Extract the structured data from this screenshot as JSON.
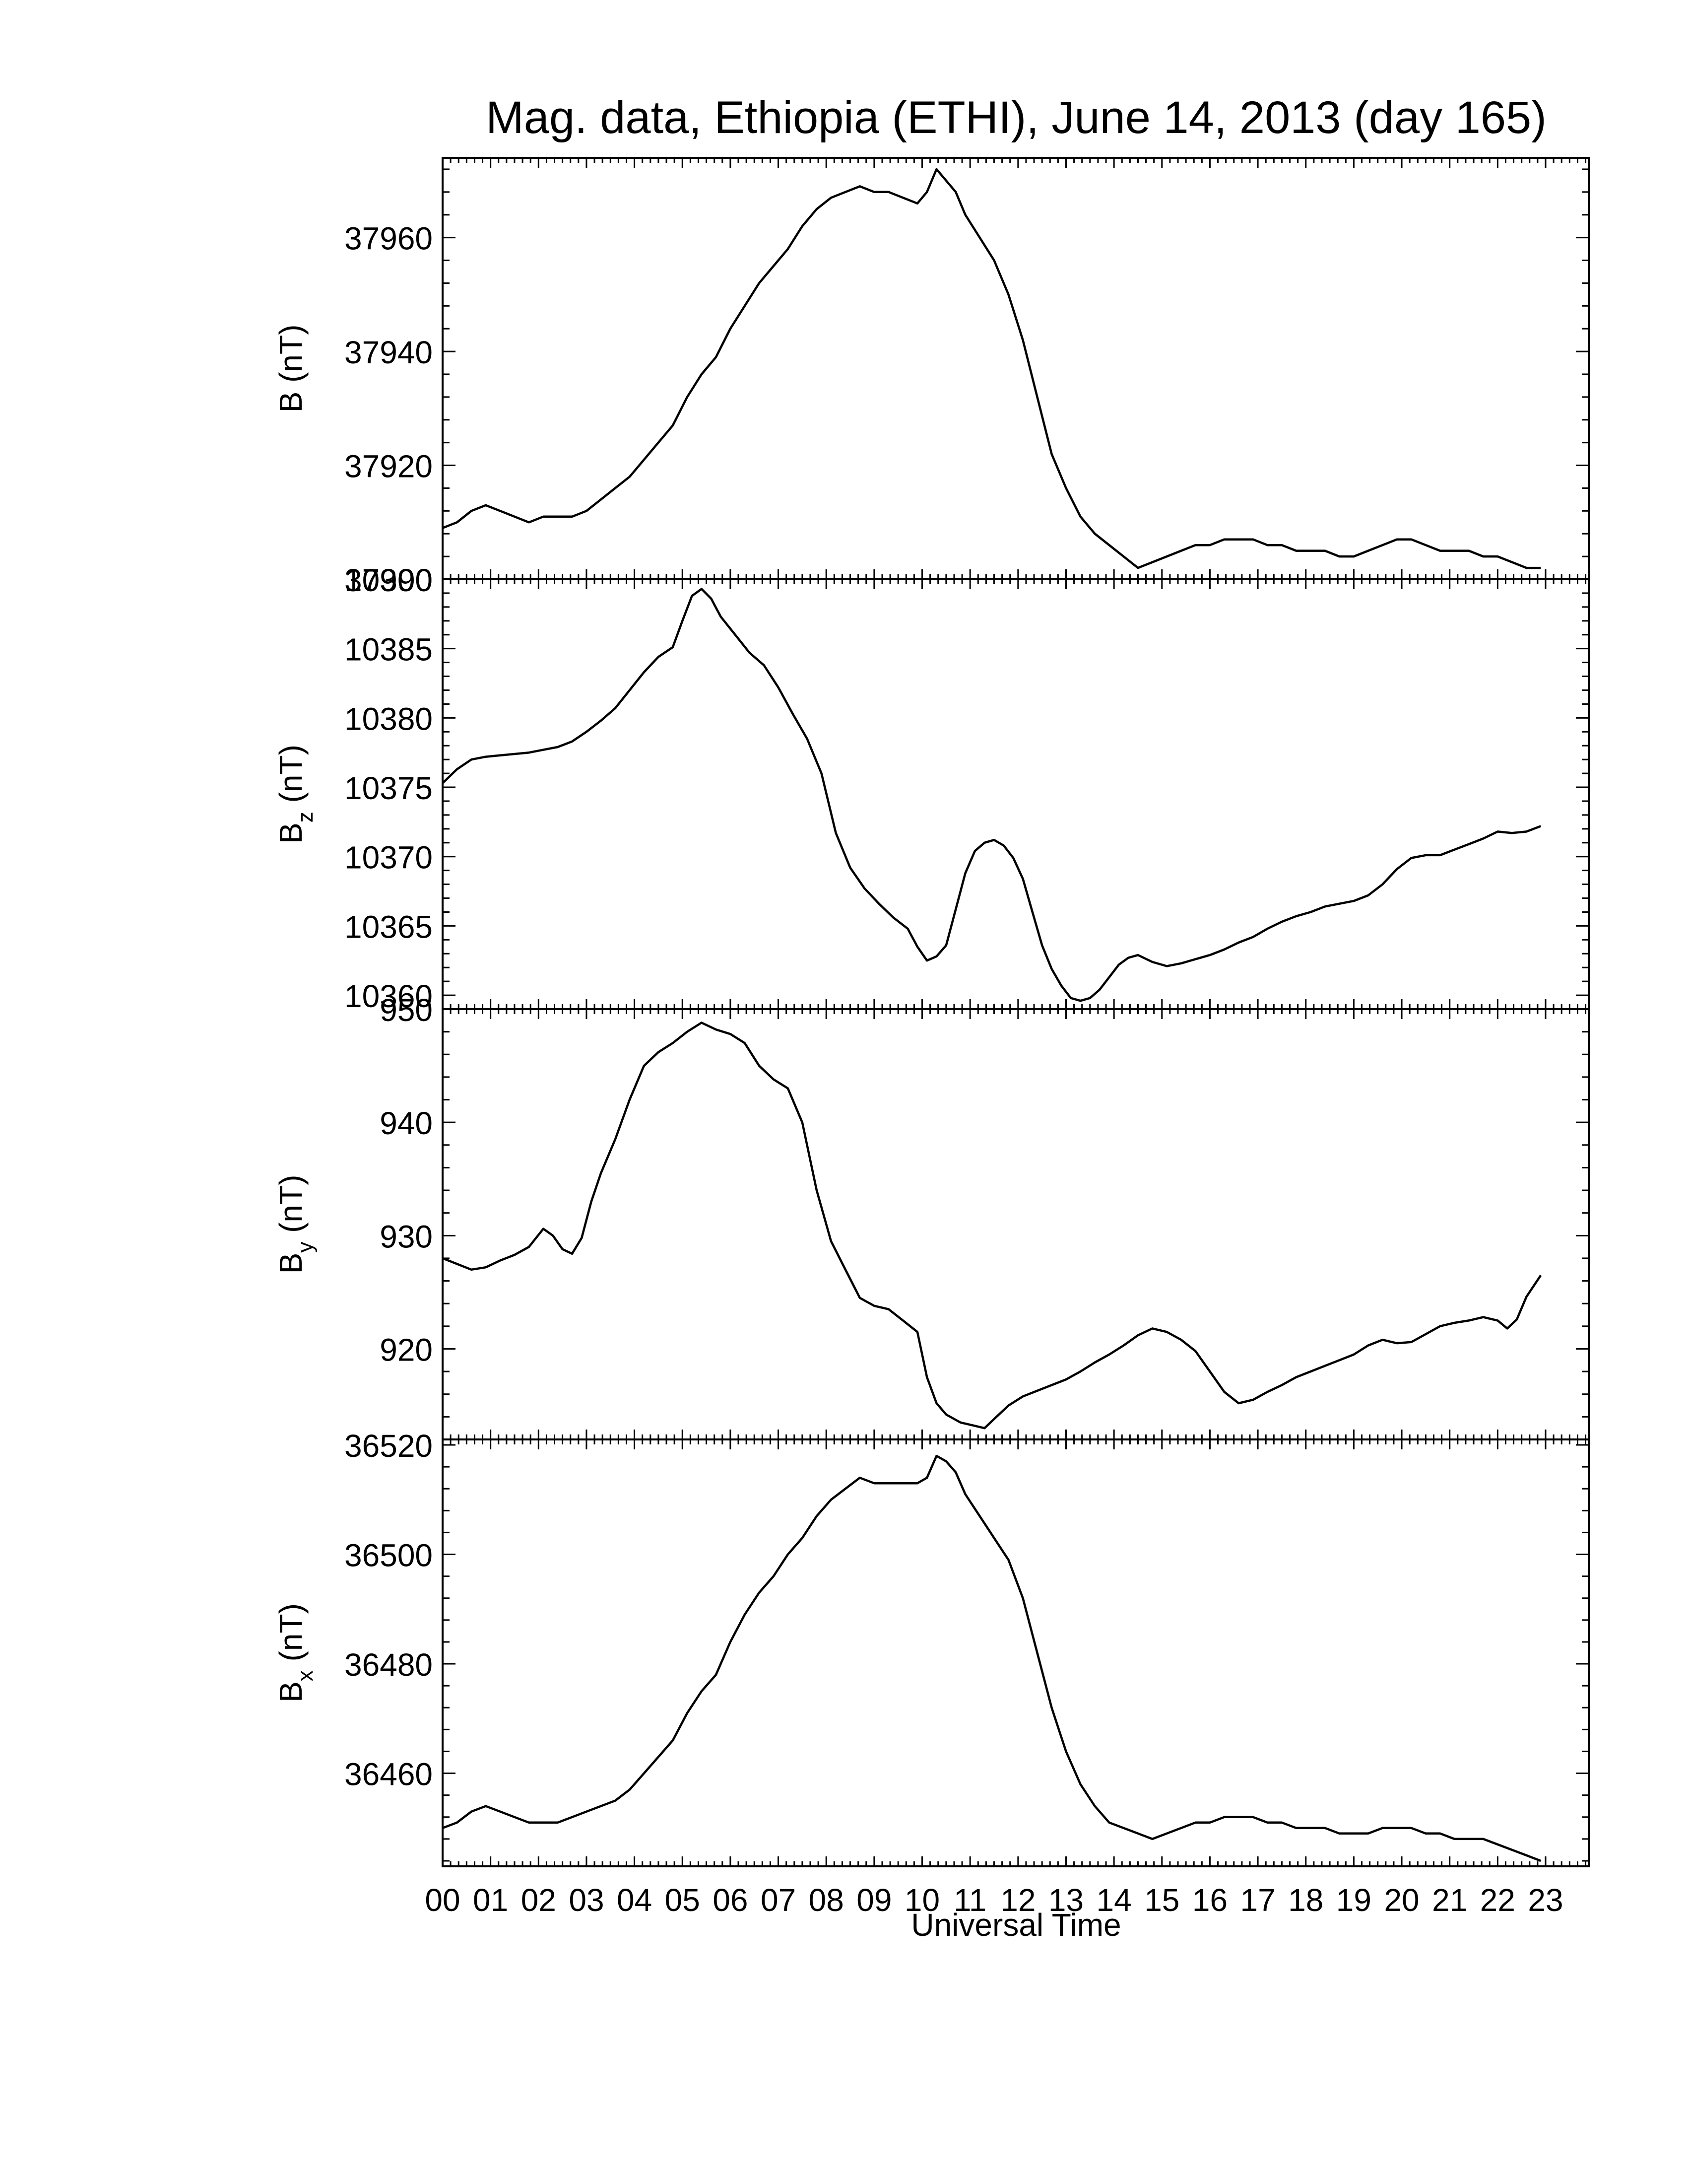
{
  "title": "Mag. data, Ethiopia (ETHI), June 14, 2013 (day 165)",
  "xlabel": "Universal Time",
  "x_tick_labels": [
    "00",
    "01",
    "02",
    "03",
    "04",
    "05",
    "06",
    "07",
    "08",
    "09",
    "10",
    "11",
    "12",
    "13",
    "14",
    "15",
    "16",
    "17",
    "18",
    "19",
    "20",
    "21",
    "22",
    "23"
  ],
  "chart_data": [
    {
      "type": "line",
      "ylabel": "B (nT)",
      "ylabel_main": "B",
      "ylabel_sub": "",
      "ylabel_unit": " (nT)",
      "ylim": [
        37900,
        37974
      ],
      "yticks": [
        37900,
        37920,
        37940,
        37960
      ],
      "series": [
        {
          "x": [
            0.0,
            0.3,
            0.6,
            0.9,
            1.2,
            1.5,
            1.8,
            2.1,
            2.4,
            2.7,
            3.0,
            3.3,
            3.6,
            3.9,
            4.2,
            4.5,
            4.8,
            5.1,
            5.4,
            5.7,
            6.0,
            6.3,
            6.6,
            6.9,
            7.2,
            7.5,
            7.8,
            8.1,
            8.4,
            8.7,
            9.0,
            9.3,
            9.6,
            9.9,
            10.1,
            10.3,
            10.5,
            10.7,
            10.9,
            11.2,
            11.5,
            11.8,
            12.1,
            12.4,
            12.7,
            13.0,
            13.3,
            13.6,
            13.9,
            14.2,
            14.5,
            14.8,
            15.1,
            15.4,
            15.7,
            16.0,
            16.3,
            16.6,
            16.9,
            17.2,
            17.5,
            17.8,
            18.1,
            18.4,
            18.7,
            19.0,
            19.3,
            19.6,
            19.9,
            20.2,
            20.5,
            20.8,
            21.1,
            21.4,
            21.7,
            22.0,
            22.3,
            22.6,
            22.9
          ],
          "y": [
            37909,
            37910,
            37912,
            37913,
            37912,
            37911,
            37910,
            37911,
            37911,
            37911,
            37912,
            37914,
            37916,
            37918,
            37921,
            37924,
            37927,
            37932,
            37936,
            37939,
            37944,
            37948,
            37952,
            37955,
            37958,
            37962,
            37965,
            37967,
            37968,
            37969,
            37968,
            37968,
            37967,
            37966,
            37968,
            37972,
            37970,
            37968,
            37964,
            37960,
            37956,
            37950,
            37942,
            37932,
            37922,
            37916,
            37911,
            37908,
            37906,
            37904,
            37902,
            37903,
            37904,
            37905,
            37906,
            37906,
            37907,
            37907,
            37907,
            37906,
            37906,
            37905,
            37905,
            37905,
            37904,
            37904,
            37905,
            37906,
            37907,
            37907,
            37906,
            37905,
            37905,
            37905,
            37904,
            37904,
            37903,
            37902,
            37902
          ]
        }
      ]
    },
    {
      "type": "line",
      "ylabel": "Bz (nT)",
      "ylabel_main": "B",
      "ylabel_sub": "z",
      "ylabel_unit": " (nT)",
      "ylim": [
        10359,
        10390
      ],
      "yticks": [
        10360,
        10365,
        10370,
        10375,
        10380,
        10385,
        10390
      ],
      "series": [
        {
          "x": [
            0.0,
            0.3,
            0.6,
            0.9,
            1.2,
            1.5,
            1.8,
            2.1,
            2.4,
            2.7,
            3.0,
            3.3,
            3.6,
            3.9,
            4.2,
            4.5,
            4.8,
            5.0,
            5.2,
            5.4,
            5.6,
            5.8,
            6.1,
            6.4,
            6.7,
            7.0,
            7.3,
            7.6,
            7.9,
            8.2,
            8.5,
            8.8,
            9.1,
            9.4,
            9.7,
            9.9,
            10.1,
            10.3,
            10.5,
            10.7,
            10.9,
            11.1,
            11.3,
            11.5,
            11.7,
            11.9,
            12.1,
            12.3,
            12.5,
            12.7,
            12.9,
            13.1,
            13.3,
            13.5,
            13.7,
            13.9,
            14.1,
            14.3,
            14.5,
            14.8,
            15.1,
            15.4,
            15.7,
            16.0,
            16.3,
            16.6,
            16.9,
            17.2,
            17.5,
            17.8,
            18.1,
            18.4,
            18.7,
            19.0,
            19.3,
            19.6,
            19.9,
            20.2,
            20.5,
            20.8,
            21.1,
            21.4,
            21.7,
            22.0,
            22.3,
            22.6,
            22.9
          ],
          "y": [
            10375.3,
            10376.3,
            10377.0,
            10377.2,
            10377.3,
            10377.4,
            10377.5,
            10377.7,
            10377.9,
            10378.3,
            10379.0,
            10379.8,
            10380.7,
            10382.0,
            10383.3,
            10384.4,
            10385.1,
            10387.0,
            10388.8,
            10389.3,
            10388.6,
            10387.3,
            10386.0,
            10384.7,
            10383.8,
            10382.2,
            10380.3,
            10378.5,
            10376.0,
            10371.7,
            10369.2,
            10367.7,
            10366.6,
            10365.6,
            10364.8,
            10363.5,
            10362.5,
            10362.8,
            10363.6,
            10366.2,
            10368.8,
            10370.4,
            10371.0,
            10371.2,
            10370.8,
            10369.9,
            10368.4,
            10366.0,
            10363.6,
            10361.9,
            10360.7,
            10359.8,
            10359.6,
            10359.8,
            10360.4,
            10361.3,
            10362.2,
            10362.7,
            10362.9,
            10362.4,
            10362.1,
            10362.3,
            10362.6,
            10362.9,
            10363.3,
            10363.8,
            10364.2,
            10364.8,
            10365.3,
            10365.7,
            10366.0,
            10366.4,
            10366.6,
            10366.8,
            10367.2,
            10368.0,
            10369.1,
            10369.9,
            10370.1,
            10370.1,
            10370.5,
            10370.9,
            10371.3,
            10371.8,
            10371.7,
            10371.8,
            10372.2
          ]
        }
      ]
    },
    {
      "type": "line",
      "ylabel": "By (nT)",
      "ylabel_main": "B",
      "ylabel_sub": "y",
      "ylabel_unit": " (nT)",
      "ylim": [
        912,
        950
      ],
      "yticks": [
        920,
        930,
        940,
        950
      ],
      "series": [
        {
          "x": [
            0.0,
            0.3,
            0.6,
            0.9,
            1.2,
            1.5,
            1.8,
            2.1,
            2.3,
            2.5,
            2.7,
            2.9,
            3.1,
            3.3,
            3.6,
            3.9,
            4.2,
            4.5,
            4.8,
            5.1,
            5.4,
            5.7,
            6.0,
            6.3,
            6.6,
            6.9,
            7.2,
            7.5,
            7.8,
            8.1,
            8.4,
            8.7,
            9.0,
            9.3,
            9.6,
            9.9,
            10.1,
            10.3,
            10.5,
            10.8,
            11.1,
            11.3,
            11.5,
            11.8,
            12.1,
            12.4,
            12.7,
            13.0,
            13.3,
            13.6,
            13.9,
            14.2,
            14.5,
            14.8,
            15.1,
            15.4,
            15.7,
            16.0,
            16.3,
            16.6,
            16.9,
            17.2,
            17.5,
            17.8,
            18.1,
            18.4,
            18.7,
            19.0,
            19.3,
            19.6,
            19.9,
            20.2,
            20.5,
            20.8,
            21.1,
            21.4,
            21.7,
            22.0,
            22.2,
            22.4,
            22.6,
            22.9
          ],
          "y": [
            928.0,
            927.5,
            927.0,
            927.2,
            927.8,
            928.3,
            929.0,
            930.6,
            930.0,
            928.8,
            928.4,
            929.8,
            933.0,
            935.5,
            938.5,
            942.0,
            945.0,
            946.2,
            947.0,
            948.0,
            948.8,
            948.2,
            947.8,
            947.0,
            945.0,
            943.8,
            943.0,
            940.0,
            934.0,
            929.5,
            927.0,
            924.5,
            923.8,
            923.5,
            922.5,
            921.5,
            917.5,
            915.2,
            914.2,
            913.5,
            913.2,
            913.0,
            913.8,
            915.0,
            915.8,
            916.3,
            916.8,
            917.3,
            918.0,
            918.8,
            919.5,
            920.3,
            921.2,
            921.8,
            921.5,
            920.8,
            919.8,
            918.0,
            916.2,
            915.2,
            915.5,
            916.2,
            916.8,
            917.5,
            918.0,
            918.5,
            919.0,
            919.5,
            920.3,
            920.8,
            920.5,
            920.6,
            921.3,
            922.0,
            922.3,
            922.5,
            922.8,
            922.5,
            921.8,
            922.6,
            924.6,
            926.5
          ]
        }
      ]
    },
    {
      "type": "line",
      "ylabel": "Bx (nT)",
      "ylabel_main": "B",
      "ylabel_sub": "x",
      "ylabel_unit": " (nT)",
      "ylim": [
        36443,
        36521
      ],
      "yticks": [
        36460,
        36480,
        36500,
        36520
      ],
      "series": [
        {
          "x": [
            0.0,
            0.3,
            0.6,
            0.9,
            1.2,
            1.5,
            1.8,
            2.1,
            2.4,
            2.7,
            3.0,
            3.3,
            3.6,
            3.9,
            4.2,
            4.5,
            4.8,
            5.1,
            5.4,
            5.7,
            6.0,
            6.3,
            6.6,
            6.9,
            7.2,
            7.5,
            7.8,
            8.1,
            8.4,
            8.7,
            9.0,
            9.3,
            9.6,
            9.9,
            10.1,
            10.3,
            10.5,
            10.7,
            10.9,
            11.2,
            11.5,
            11.8,
            12.1,
            12.4,
            12.7,
            13.0,
            13.3,
            13.6,
            13.9,
            14.2,
            14.5,
            14.8,
            15.1,
            15.4,
            15.7,
            16.0,
            16.3,
            16.6,
            16.9,
            17.2,
            17.5,
            17.8,
            18.1,
            18.4,
            18.7,
            19.0,
            19.3,
            19.6,
            19.9,
            20.2,
            20.5,
            20.8,
            21.1,
            21.4,
            21.7,
            22.0,
            22.3,
            22.6,
            22.9
          ],
          "y": [
            36450,
            36451,
            36453,
            36454,
            36453,
            36452,
            36451,
            36451,
            36451,
            36452,
            36453,
            36454,
            36455,
            36457,
            36460,
            36463,
            36466,
            36471,
            36475,
            36478,
            36484,
            36489,
            36493,
            36496,
            36500,
            36503,
            36507,
            36510,
            36512,
            36514,
            36513,
            36513,
            36513,
            36513,
            36514,
            36518,
            36517,
            36515,
            36511,
            36507,
            36503,
            36499,
            36492,
            36482,
            36472,
            36464,
            36458,
            36454,
            36451,
            36450,
            36449,
            36448,
            36449,
            36450,
            36451,
            36451,
            36452,
            36452,
            36452,
            36451,
            36451,
            36450,
            36450,
            36450,
            36449,
            36449,
            36449,
            36450,
            36450,
            36450,
            36449,
            36449,
            36448,
            36448,
            36448,
            36447,
            36446,
            36445,
            36444
          ]
        }
      ]
    }
  ]
}
